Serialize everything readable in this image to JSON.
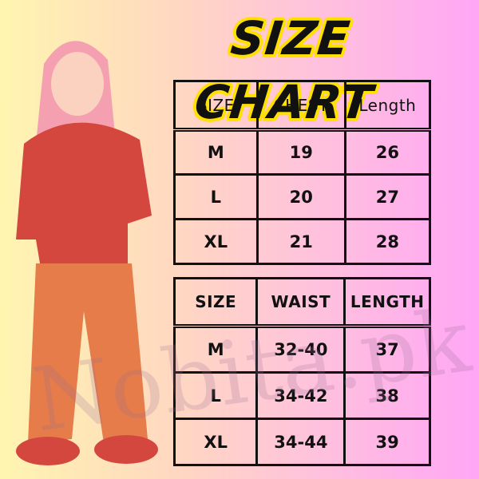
{
  "title": "SIZE CHART",
  "watermark": "Nobita.pk",
  "top_table": {
    "headers": [
      "SIZE",
      "CHEST",
      "Length"
    ],
    "rows": [
      [
        "M",
        "19",
        "26"
      ],
      [
        "L",
        "20",
        "27"
      ],
      [
        "XL",
        "21",
        "28"
      ]
    ]
  },
  "bottom_table": {
    "headers": [
      "SIZE",
      "WAIST",
      "LENGTH"
    ],
    "rows": [
      [
        "M",
        "32-40",
        "37"
      ],
      [
        "L",
        "34-42",
        "38"
      ],
      [
        "XL",
        "34-44",
        "39"
      ]
    ]
  },
  "colors": {
    "title_outline": "#ffe000",
    "shirt": "#d4473f",
    "pants": "#e67c4a",
    "hair": "#f4a0b0"
  }
}
